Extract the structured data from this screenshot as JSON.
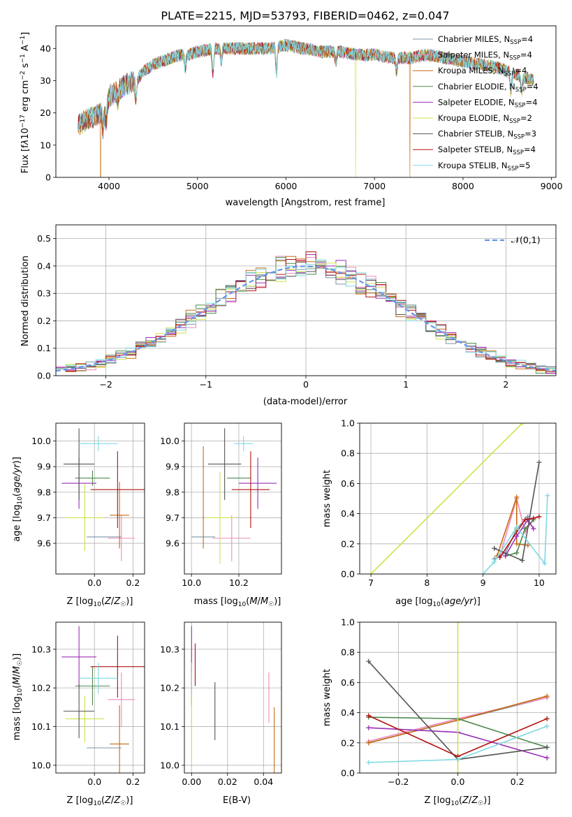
{
  "figure_title": "PLATE=2215, MJD=53793, FIBERID=0462, z=0.047",
  "models": [
    {
      "name": "Chabrier MILES",
      "nssp": "4",
      "color": "#7b95a8"
    },
    {
      "name": "Salpeter MILES",
      "nssp": "4",
      "color": "#f08aba"
    },
    {
      "name": "Kroupa MILES",
      "nssp": "4",
      "color": "#c56b12"
    },
    {
      "name": "Chabrier ELODIE",
      "nssp": "4",
      "color": "#4b8a4b"
    },
    {
      "name": "Salpeter ELODIE",
      "nssp": "4",
      "color": "#9b2fb6"
    },
    {
      "name": "Kroupa ELODIE",
      "nssp": "2",
      "color": "#cfe24a"
    },
    {
      "name": "Chabrier STELIB",
      "nssp": "3",
      "color": "#555555"
    },
    {
      "name": "Salpeter STELIB",
      "nssp": "4",
      "color": "#b31010"
    },
    {
      "name": "Kroupa STELIB",
      "nssp": "5",
      "color": "#7fd9e2"
    }
  ],
  "chart_data": [
    {
      "id": "spectrum",
      "type": "line",
      "xlabel": "wavelength [Angstrom, rest frame]",
      "ylabel": "Flux [f_λ 10^-17 erg cm^-2 s^-1 A^-1]",
      "xlim": [
        3400,
        9050
      ],
      "ylim": [
        0,
        47
      ],
      "xticks": [
        4000,
        5000,
        6000,
        7000,
        8000,
        9000
      ],
      "yticks": [
        0,
        10,
        20,
        30,
        40
      ],
      "continuum": {
        "x": [
          3650,
          3750,
          3850,
          3950,
          4000,
          4100,
          4200,
          4300,
          4400,
          4500,
          4600,
          4700,
          4800,
          4900,
          5000,
          5200,
          5400,
          5600,
          5800,
          6000,
          6200,
          6400,
          6600,
          6800,
          7000,
          7200,
          7400,
          7600,
          7800,
          8000,
          8200,
          8400,
          8600,
          8800
        ],
        "y": [
          16,
          18,
          19,
          21,
          25,
          27,
          29,
          30,
          33,
          35,
          36,
          37,
          38,
          38,
          39,
          40,
          40,
          40,
          40,
          41,
          40,
          39,
          39,
          38,
          38,
          37,
          37,
          38,
          37,
          36,
          35,
          34,
          32,
          30
        ]
      },
      "absorption_lines": [
        {
          "x": 3934,
          "depth": 6
        },
        {
          "x": 3969,
          "depth": 5
        },
        {
          "x": 4102,
          "depth": 3
        },
        {
          "x": 4305,
          "depth": 6
        },
        {
          "x": 4861,
          "depth": 4
        },
        {
          "x": 5175,
          "depth": 8
        },
        {
          "x": 5270,
          "depth": 4
        },
        {
          "x": 5893,
          "depth": 8
        },
        {
          "x": 6563,
          "depth": 3
        },
        {
          "x": 7250,
          "depth": 4
        },
        {
          "x": 8542,
          "depth": 6
        },
        {
          "x": 8662,
          "depth": 5
        }
      ],
      "dropouts": [
        {
          "x": 3905,
          "series": "Kroupa MILES"
        },
        {
          "x": 6790,
          "series": "Kroupa ELODIE"
        },
        {
          "x": 7400,
          "series": "Kroupa MILES"
        }
      ],
      "legend_position": "upper right"
    },
    {
      "id": "residuals",
      "type": "step",
      "xlabel": "(data-model)/error",
      "ylabel": "Normed distribution",
      "xlim": [
        -2.5,
        2.5
      ],
      "ylim": [
        0,
        0.55
      ],
      "xticks": [
        -2,
        -1,
        0,
        1,
        2
      ],
      "yticks": [
        0.0,
        0.1,
        0.2,
        0.3,
        0.4,
        0.5
      ],
      "bin_width": 0.1,
      "reference": {
        "name": "𝒩(0,1)",
        "color": "#6495ed",
        "style": "dashed"
      },
      "grid": true,
      "legend_position": "upper right"
    },
    {
      "id": "age_vs_Z",
      "type": "errorbar",
      "xlabel": "Z [log10(Z/Z☉)]",
      "ylabel": "age [log10(age/yr)]",
      "xlim": [
        -0.2,
        0.26
      ],
      "ylim": [
        9.48,
        10.07
      ],
      "xticks": [
        0.0,
        0.2
      ],
      "yticks": [
        9.6,
        9.7,
        9.8,
        9.9,
        10.0
      ],
      "grid": true,
      "points": [
        {
          "series": "Chabrier MILES",
          "x": 0.05,
          "xerr": 0.09,
          "y": 9.625,
          "yerr": 0.0
        },
        {
          "series": "Salpeter MILES",
          "x": 0.14,
          "xerr": 0.07,
          "y": 9.62,
          "yerr": 0.09
        },
        {
          "series": "Kroupa MILES",
          "x": 0.13,
          "xerr": 0.05,
          "y": 9.71,
          "yerr": 0.13
        },
        {
          "series": "Chabrier ELODIE",
          "x": -0.01,
          "xerr": 0.09,
          "y": 9.855,
          "yerr": 0.03
        },
        {
          "series": "Salpeter ELODIE",
          "x": -0.08,
          "xerr": 0.09,
          "y": 9.835,
          "yerr": 0.1
        },
        {
          "series": "Kroupa ELODIE",
          "x": -0.05,
          "xerr": 0.1,
          "y": 9.7,
          "yerr": 0.13
        },
        {
          "series": "Chabrier STELIB",
          "x": -0.08,
          "xerr": 0.08,
          "y": 9.91,
          "yerr": 0.14
        },
        {
          "series": "Salpeter STELIB",
          "x": 0.12,
          "xerr": 0.14,
          "y": 9.81,
          "yerr": 0.15
        },
        {
          "series": "Kroupa STELIB",
          "x": 0.02,
          "xerr": 0.1,
          "y": 9.99,
          "yerr": 0.03
        }
      ]
    },
    {
      "id": "age_vs_mass",
      "type": "errorbar",
      "xlabel": "mass [log10(M/M☉)]",
      "ylabel": "",
      "xlim": [
        9.97,
        10.38
      ],
      "ylim": [
        9.48,
        10.07
      ],
      "xticks": [
        10.0,
        10.2
      ],
      "yticks": [
        9.6,
        9.7,
        9.8,
        9.9,
        10.0
      ],
      "grid": true,
      "points": [
        {
          "series": "Chabrier MILES",
          "x": 10.05,
          "xerr": 0.05,
          "y": 9.625,
          "yerr": 0.0
        },
        {
          "series": "Salpeter MILES",
          "x": 10.17,
          "xerr": 0.08,
          "y": 9.62,
          "yerr": 0.09
        },
        {
          "series": "Kroupa MILES",
          "x": 10.05,
          "xerr": 0.0,
          "y": 9.78,
          "yerr": 0.2
        },
        {
          "series": "Chabrier ELODIE",
          "x": 10.2,
          "xerr": 0.05,
          "y": 9.855,
          "yerr": 0.0
        },
        {
          "series": "Salpeter ELODIE",
          "x": 10.28,
          "xerr": 0.08,
          "y": 9.835,
          "yerr": 0.1
        },
        {
          "series": "Kroupa ELODIE",
          "x": 10.12,
          "xerr": 0.06,
          "y": 9.7,
          "yerr": 0.18
        },
        {
          "series": "Chabrier STELIB",
          "x": 10.14,
          "xerr": 0.07,
          "y": 9.91,
          "yerr": 0.14
        },
        {
          "series": "Salpeter STELIB",
          "x": 10.25,
          "xerr": 0.08,
          "y": 9.81,
          "yerr": 0.15
        },
        {
          "series": "Kroupa STELIB",
          "x": 10.22,
          "xerr": 0.04,
          "y": 9.99,
          "yerr": 0.03
        }
      ]
    },
    {
      "id": "mass_weight_vs_age",
      "type": "line",
      "xlabel": "age [log10(age/yr)]",
      "ylabel": "mass weight",
      "xlim": [
        6.8,
        10.3
      ],
      "ylim": [
        0,
        1
      ],
      "xticks": [
        7,
        8,
        9,
        10
      ],
      "yticks": [
        0.0,
        0.2,
        0.4,
        0.6,
        0.8,
        1.0
      ],
      "grid": true,
      "series": [
        {
          "name": "Chabrier MILES",
          "x": [
            9.2,
            9.4,
            9.6,
            9.8
          ],
          "y": [
            0.1,
            0.14,
            0.3,
            0.38
          ]
        },
        {
          "name": "Salpeter MILES",
          "x": [
            9.3,
            9.6,
            9.75,
            9.9
          ],
          "y": [
            0.12,
            0.5,
            0.28,
            0.36
          ]
        },
        {
          "name": "Kroupa MILES",
          "x": [
            9.25,
            9.6,
            9.6,
            9.8
          ],
          "y": [
            0.12,
            0.51,
            0.2,
            0.19
          ]
        },
        {
          "name": "Chabrier ELODIE",
          "x": [
            9.4,
            9.6,
            9.75,
            9.9
          ],
          "y": [
            0.12,
            0.14,
            0.3,
            0.36
          ]
        },
        {
          "name": "Salpeter ELODIE",
          "x": [
            9.4,
            9.6,
            9.8,
            9.9
          ],
          "y": [
            0.12,
            0.25,
            0.36,
            0.3
          ]
        },
        {
          "name": "Kroupa ELODIE",
          "x": [
            7.0,
            9.7
          ],
          "y": [
            0.0,
            1.0
          ]
        },
        {
          "name": "Chabrier STELIB",
          "x": [
            9.2,
            9.7,
            10.0
          ],
          "y": [
            0.17,
            0.09,
            0.74
          ]
        },
        {
          "name": "Salpeter STELIB",
          "x": [
            9.3,
            9.75,
            9.9,
            10.0
          ],
          "y": [
            0.11,
            0.36,
            0.37,
            0.38
          ]
        },
        {
          "name": "Kroupa STELIB",
          "x": [
            9.0,
            9.2,
            9.6,
            10.1,
            10.15
          ],
          "y": [
            0.0,
            0.08,
            0.31,
            0.07,
            0.52
          ]
        }
      ]
    },
    {
      "id": "mass_vs_Z",
      "type": "errorbar",
      "xlabel": "Z [log10(Z/Z☉)]",
      "ylabel": "mass [log10(M/M☉)]",
      "xlim": [
        -0.2,
        0.26
      ],
      "ylim": [
        9.98,
        10.37
      ],
      "xticks": [
        0.0,
        0.2
      ],
      "yticks": [
        10.0,
        10.1,
        10.2,
        10.3
      ],
      "grid": true,
      "points": [
        {
          "series": "Chabrier MILES",
          "x": 0.05,
          "xerr": 0.09,
          "y": 10.045,
          "yerr": 0.0
        },
        {
          "series": "Salpeter MILES",
          "x": 0.14,
          "xerr": 0.07,
          "y": 10.17,
          "yerr": 0.07
        },
        {
          "series": "Kroupa MILES",
          "x": 0.13,
          "xerr": 0.05,
          "y": 10.055,
          "yerr": 0.1
        },
        {
          "series": "Chabrier ELODIE",
          "x": -0.01,
          "xerr": 0.09,
          "y": 10.205,
          "yerr": 0.05
        },
        {
          "series": "Salpeter ELODIE",
          "x": -0.08,
          "xerr": 0.09,
          "y": 10.28,
          "yerr": 0.08
        },
        {
          "series": "Kroupa ELODIE",
          "x": -0.05,
          "xerr": 0.1,
          "y": 10.12,
          "yerr": 0.06
        },
        {
          "series": "Chabrier STELIB",
          "x": -0.08,
          "xerr": 0.08,
          "y": 10.14,
          "yerr": 0.07
        },
        {
          "series": "Salpeter STELIB",
          "x": 0.12,
          "xerr": 0.14,
          "y": 10.255,
          "yerr": 0.08
        },
        {
          "series": "Kroupa STELIB",
          "x": 0.02,
          "xerr": 0.1,
          "y": 10.225,
          "yerr": 0.04
        }
      ]
    },
    {
      "id": "mass_vs_ebv",
      "type": "errorbar",
      "xlabel": "E(B-V)",
      "ylabel": "",
      "xlim": [
        -0.004,
        0.05
      ],
      "ylim": [
        9.98,
        10.37
      ],
      "xticks": [
        0.0,
        0.02,
        0.04
      ],
      "yticks": [
        10.0,
        10.1,
        10.2,
        10.3
      ],
      "grid": true,
      "points": [
        {
          "series": "Chabrier MILES",
          "x": 0.0,
          "xerr": 0.0,
          "y": 10.05,
          "yerr": 0.0
        },
        {
          "series": "Salpeter MILES",
          "x": 0.043,
          "xerr": 0.0,
          "y": 10.175,
          "yerr": 0.065
        },
        {
          "series": "Kroupa MILES",
          "x": 0.046,
          "xerr": 0.0,
          "y": 10.055,
          "yerr": 0.095
        },
        {
          "series": "Chabrier ELODIE",
          "x": 0.0,
          "xerr": 0.0,
          "y": 10.205,
          "yerr": 0.05
        },
        {
          "series": "Salpeter ELODIE",
          "x": 0.0,
          "xerr": 0.0,
          "y": 10.28,
          "yerr": 0.08
        },
        {
          "series": "Kroupa ELODIE",
          "x": 0.0,
          "xerr": 0.0,
          "y": 10.12,
          "yerr": 0.12
        },
        {
          "series": "Chabrier STELIB",
          "x": 0.013,
          "xerr": 0.0,
          "y": 10.14,
          "yerr": 0.075
        },
        {
          "series": "Salpeter STELIB",
          "x": 0.002,
          "xerr": 0.0,
          "y": 10.26,
          "yerr": 0.055
        },
        {
          "series": "Kroupa STELIB",
          "x": 0.0,
          "xerr": 0.0,
          "y": 10.225,
          "yerr": 0.04
        }
      ]
    },
    {
      "id": "mass_weight_vs_Z",
      "type": "line",
      "xlabel": "Z [log10(Z/Z☉)]",
      "ylabel": "mass weight",
      "xlim": [
        -0.33,
        0.33
      ],
      "ylim": [
        0,
        1
      ],
      "xticks": [
        -0.2,
        0.0,
        0.2
      ],
      "yticks": [
        0.0,
        0.2,
        0.4,
        0.6,
        0.8,
        1.0
      ],
      "grid": true,
      "series": [
        {
          "name": "Chabrier MILES",
          "x": [
            -0.3,
            0.0,
            0.3
          ],
          "y": [
            0.2,
            0.35,
            0.5
          ]
        },
        {
          "name": "Salpeter MILES",
          "x": [
            -0.3,
            0.0,
            0.3
          ],
          "y": [
            0.21,
            0.36,
            0.5
          ]
        },
        {
          "name": "Kroupa MILES",
          "x": [
            -0.3,
            0.0,
            0.3
          ],
          "y": [
            0.2,
            0.35,
            0.51
          ]
        },
        {
          "name": "Chabrier ELODIE",
          "x": [
            -0.3,
            0.0,
            0.3
          ],
          "y": [
            0.37,
            0.36,
            0.17
          ]
        },
        {
          "name": "Salpeter ELODIE",
          "x": [
            -0.3,
            0.0,
            0.3
          ],
          "y": [
            0.3,
            0.27,
            0.1
          ]
        },
        {
          "name": "Kroupa ELODIE",
          "x": [
            0.0,
            0.0
          ],
          "y": [
            0.0,
            1.0
          ]
        },
        {
          "name": "Chabrier STELIB",
          "x": [
            -0.3,
            0.0,
            0.3
          ],
          "y": [
            0.74,
            0.09,
            0.17
          ]
        },
        {
          "name": "Salpeter STELIB",
          "x": [
            -0.3,
            0.0,
            0.3
          ],
          "y": [
            0.38,
            0.11,
            0.36
          ]
        },
        {
          "name": "Kroupa STELIB",
          "x": [
            -0.3,
            0.0,
            0.3
          ],
          "y": [
            0.07,
            0.09,
            0.31
          ]
        }
      ]
    }
  ]
}
